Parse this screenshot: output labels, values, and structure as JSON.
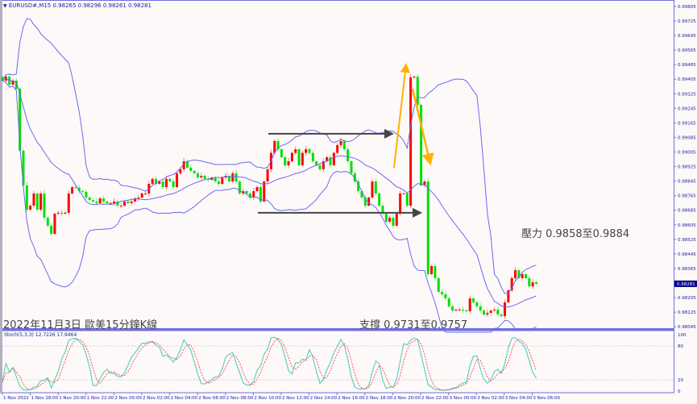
{
  "header": {
    "symbol": "EURUSD#,M15",
    "ohlc": "0.98265 0.98296 0.98261 0.98281",
    "menu_icon": "triangle-down-icon"
  },
  "annotations": {
    "title": "2022年11月3日 歐美15分鐘K線",
    "support": "支撐 0.9731至0.9757",
    "resistance": "壓力 0.9858至0.9884"
  },
  "colors": {
    "bullish": "#ff0000",
    "bearish": "#00e000",
    "bands": "#6a6af0",
    "axis": "#7070e0",
    "stoch_main": "#5fd0c0",
    "stoch_signal": "#ff5050",
    "arrow_dark": "#444444",
    "arrow_orange": "#ffb000",
    "price_tag": "#00008b"
  },
  "chart_data": [
    {
      "type": "candlestick",
      "title": "EURUSD#,M15",
      "timeframe": "M15",
      "indicator": "Bollinger Bands",
      "current_price": "0.98281",
      "y_ticks": [
        "0.99805",
        "0.99725",
        "0.99645",
        "0.99565",
        "0.99485",
        "0.99405",
        "0.99325",
        "0.99245",
        "0.99165",
        "0.99085",
        "0.99005",
        "0.98925",
        "0.98845",
        "0.98765",
        "0.98685",
        "0.98605",
        "0.98525",
        "0.98445",
        "0.98365",
        "0.98205",
        "0.98125",
        "0.98045"
      ],
      "ylim": [
        0.98045,
        0.99805
      ],
      "x_ticks": [
        "1 Nov 2022",
        "1 Nov 18:00",
        "1 Nov 20:00",
        "1 Nov 22:00",
        "2 Nov 00:00",
        "2 Nov 02:00",
        "2 Nov 04:00",
        "2 Nov 06:00",
        "2 Nov 08:00",
        "2 Nov 10:00",
        "2 Nov 12:00",
        "2 Nov 14:00",
        "2 Nov 16:00",
        "2 Nov 18:00",
        "2 Nov 20:00",
        "2 Nov 22:00",
        "3 Nov 00:00",
        "3 Nov 02:00",
        "3 Nov 04:00",
        "3 Nov 06:00"
      ],
      "closes": [
        0.99397,
        0.99419,
        0.99375,
        0.99397,
        0.99353,
        0.99012,
        0.98821,
        0.98688,
        0.9871,
        0.98777,
        0.98688,
        0.98777,
        0.98644,
        0.986,
        0.98555,
        0.98666,
        0.98671,
        0.98666,
        0.98671,
        0.98777,
        0.98812,
        0.98808,
        0.9879,
        0.98786,
        0.98755,
        0.98741,
        0.98733,
        0.98724,
        0.9875,
        0.98733,
        0.98724,
        0.98724,
        0.98733,
        0.9871,
        0.9871,
        0.98733,
        0.98724,
        0.98733,
        0.9875,
        0.98755,
        0.98777,
        0.98777,
        0.9883,
        0.98857,
        0.9883,
        0.98843,
        0.98812,
        0.98857,
        0.98843,
        0.98812,
        0.98888,
        0.9891,
        0.98954,
        0.98919,
        0.98901,
        0.98888,
        0.98865,
        0.98874,
        0.98857,
        0.98852,
        0.98865,
        0.98843,
        0.9883,
        0.98865,
        0.98874,
        0.98843,
        0.98888,
        0.98843,
        0.98777,
        0.9879,
        0.98777,
        0.98755,
        0.9879,
        0.98812,
        0.98733,
        0.98843,
        0.9891,
        0.99,
        0.99065,
        0.9902,
        0.98976,
        0.98932,
        0.98954,
        0.99,
        0.9902,
        0.98932,
        0.99,
        0.9902,
        0.99,
        0.98954,
        0.98932,
        0.9891,
        0.98954,
        0.98976,
        0.98932,
        0.99,
        0.99043,
        0.99065,
        0.9902,
        0.98954,
        0.98888,
        0.98843,
        0.9879,
        0.98755,
        0.9871,
        0.98755,
        0.98843,
        0.98777,
        0.9871,
        0.98666,
        0.98622,
        0.98644,
        0.986,
        0.98666,
        0.98777,
        0.98777,
        0.9871,
        0.99415,
        0.99419,
        0.99264,
        0.98821,
        0.98843,
        0.98334,
        0.98378,
        0.98312,
        0.98236,
        0.98223,
        0.98201,
        0.98157,
        0.98134,
        0.98139,
        0.98139,
        0.98134,
        0.9813,
        0.98201,
        0.98179,
        0.98157,
        0.98134,
        0.98112,
        0.98121,
        0.98134,
        0.98139,
        0.98112,
        0.98103,
        0.98179,
        0.98245,
        0.98312,
        0.98356,
        0.98312,
        0.98334,
        0.98312,
        0.98267,
        0.98289,
        0.98281
      ],
      "horizontal_arrows_price": [
        0.99105,
        0.98671
      ]
    },
    {
      "type": "line",
      "title": "Stoch(5,3,3)",
      "main_value": "12.7226",
      "signal_value": "17.9464",
      "label": "Stoch(5,3,3) 12.7226 17.9464",
      "y_ticks": [
        "100",
        "80",
        "20",
        "0"
      ],
      "levels": [
        80,
        20
      ],
      "ylim": [
        0,
        100
      ]
    }
  ]
}
